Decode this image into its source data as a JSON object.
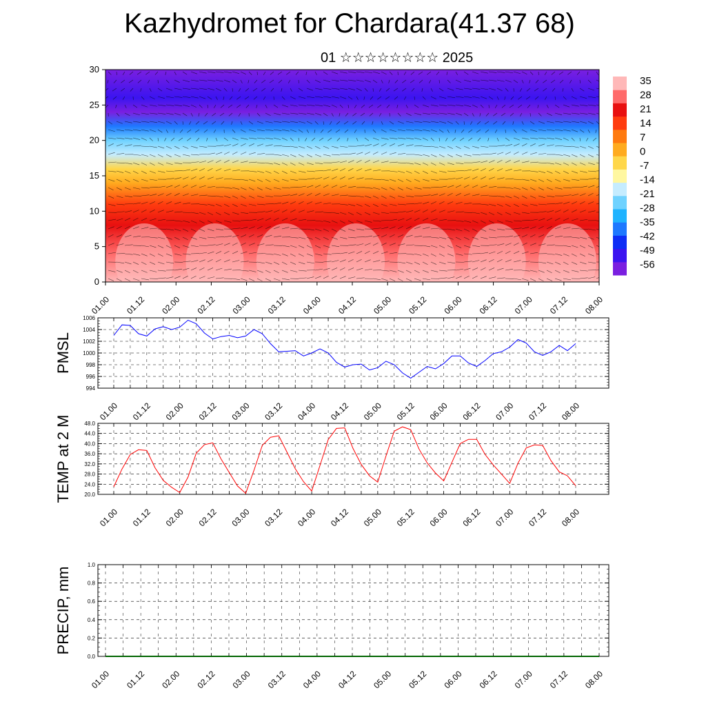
{
  "title": "Kazhydromet for Chardara(41.37 68)",
  "subtitle": "01 ☆☆☆☆☆☆☆☆ 2025",
  "time_labels": [
    "01.00",
    "01.12",
    "02.00",
    "02.12",
    "03.00",
    "03.12",
    "04.00",
    "04.12",
    "05.00",
    "05.12",
    "06.00",
    "06.12",
    "07.00",
    "07.12",
    "08.00"
  ],
  "colors": {
    "pmsl_line": "#0000ff",
    "temp_line": "#ff0000",
    "precip_line": "#006400",
    "colorbar": [
      "#7a1fe0",
      "#3b14f0",
      "#0e2df5",
      "#1e78ff",
      "#1fb3ff",
      "#6fd2ff",
      "#c5ecff",
      "#fff7a0",
      "#ffd74a",
      "#ffab1f",
      "#ff7a0f",
      "#ff3c0f",
      "#e81010",
      "#ff6a6a",
      "#ffb8b8"
    ]
  },
  "chart_data": [
    {
      "type": "heatmap",
      "name": "vertical cross-section",
      "ylim": [
        0,
        30
      ],
      "yticks": [
        "0",
        "5",
        "10",
        "15",
        "20",
        "25",
        "30"
      ],
      "xticks": [
        "01.00",
        "01.12",
        "02.00",
        "02.12",
        "03.00",
        "03.12",
        "04.00",
        "04.12",
        "05.00",
        "05.12",
        "06.00",
        "06.12",
        "07.00",
        "07.12",
        "08.00"
      ],
      "colorbar_labels": [
        "35",
        "28",
        "21",
        "14",
        "7",
        "0",
        "-7",
        "-14",
        "-21",
        "-28",
        "-35",
        "-42",
        "-49",
        "-56"
      ],
      "colorbar_range": [
        -63,
        42
      ],
      "profile": [
        {
          "y": 0,
          "v": 35
        },
        {
          "y": 4,
          "v": 28
        },
        {
          "y": 8,
          "v": 24
        },
        {
          "y": 11,
          "v": 18
        },
        {
          "y": 14,
          "v": 6
        },
        {
          "y": 16,
          "v": -6
        },
        {
          "y": 18,
          "v": -16
        },
        {
          "y": 20,
          "v": -28
        },
        {
          "y": 22,
          "v": -42
        },
        {
          "y": 24,
          "v": -58
        },
        {
          "y": 26,
          "v": -50
        },
        {
          "y": 30,
          "v": -60
        }
      ]
    },
    {
      "type": "line",
      "ylabel": "PMSL",
      "ylim": [
        994,
        1006
      ],
      "yticks": [
        "994",
        "996",
        "998",
        "1000",
        "1002",
        "1004",
        "1006"
      ],
      "xticks": [
        "01.00",
        "01.12",
        "02.00",
        "02.12",
        "03.00",
        "03.12",
        "04.00",
        "04.12",
        "05.00",
        "05.12",
        "06.00",
        "06.12",
        "07.00",
        "07.12",
        "08.00"
      ],
      "x": [
        0,
        0.125,
        0.25,
        0.375,
        0.5,
        0.625,
        0.75,
        0.875,
        1,
        1.125,
        1.25,
        1.375,
        1.5,
        1.625,
        1.75,
        1.875,
        2,
        2.125,
        2.25,
        2.375,
        2.5,
        2.625,
        2.75,
        2.875,
        3,
        3.125,
        3.25,
        3.375,
        3.5,
        3.625,
        3.75,
        3.875,
        4,
        4.125,
        4.25,
        4.375,
        4.5,
        4.625,
        4.75,
        4.875,
        5,
        5.125,
        5.25,
        5.375,
        5.5,
        5.625,
        5.75,
        5.875,
        6,
        6.125,
        6.25,
        6.375,
        6.5,
        6.625,
        6.75,
        6.875,
        7
      ],
      "series": [
        {
          "values": [
            1003.0,
            1004.8,
            1004.7,
            1003.3,
            1002.9,
            1004.1,
            1004.5,
            1004.0,
            1004.4,
            1005.6,
            1005.0,
            1003.4,
            1002.4,
            1002.8,
            1003.0,
            1002.6,
            1002.9,
            1004.0,
            1003.3,
            1001.6,
            1000.2,
            1000.3,
            1000.4,
            999.5,
            1000.0,
            1000.7,
            1000.0,
            998.4,
            997.6,
            998.0,
            998.1,
            997.1,
            997.5,
            998.6,
            998.0,
            996.6,
            995.7,
            996.7,
            997.7,
            997.3,
            998.2,
            999.5,
            999.5,
            998.3,
            997.7,
            998.7,
            999.9,
            1000.2,
            1001.0,
            1002.3,
            1001.7,
            1000.2,
            999.6,
            1000.2,
            1001.3,
            1000.4,
            1001.6
          ]
        }
      ]
    },
    {
      "type": "line",
      "ylabel": "TEMP at 2 M",
      "ylim": [
        20,
        48
      ],
      "yticks": [
        "20.0",
        "24.0",
        "28.0",
        "32.0",
        "36.0",
        "40.0",
        "44.0",
        "48.0"
      ],
      "xticks": [
        "01.00",
        "01.12",
        "02.00",
        "02.12",
        "03.00",
        "03.12",
        "04.00",
        "04.12",
        "05.00",
        "05.12",
        "06.00",
        "06.12",
        "07.00",
        "07.12",
        "08.00"
      ],
      "x": [
        0,
        0.125,
        0.25,
        0.375,
        0.5,
        0.625,
        0.75,
        0.875,
        1,
        1.125,
        1.25,
        1.375,
        1.5,
        1.625,
        1.75,
        1.875,
        2,
        2.125,
        2.25,
        2.375,
        2.5,
        2.625,
        2.75,
        2.875,
        3,
        3.125,
        3.25,
        3.375,
        3.5,
        3.625,
        3.75,
        3.875,
        4,
        4.125,
        4.25,
        4.375,
        4.5,
        4.625,
        4.75,
        4.875,
        5,
        5.125,
        5.25,
        5.375,
        5.5,
        5.625,
        5.75,
        5.875,
        6,
        6.125,
        6.25,
        6.375,
        6.5,
        6.625,
        6.75,
        6.875,
        7
      ],
      "series": [
        {
          "values": [
            23.0,
            30.0,
            35.7,
            37.6,
            37.3,
            30.5,
            25.5,
            22.8,
            20.7,
            26.8,
            36.2,
            39.6,
            40.3,
            34.0,
            28.6,
            23.3,
            20.4,
            29.5,
            39.3,
            42.5,
            43.1,
            36.6,
            30.1,
            25.0,
            21.3,
            31.4,
            41.6,
            46.0,
            46.2,
            38.1,
            31.8,
            27.3,
            24.8,
            35.1,
            44.9,
            46.6,
            45.5,
            37.9,
            32.4,
            28.4,
            25.3,
            32.6,
            40.0,
            41.7,
            41.7,
            35.8,
            31.6,
            28.0,
            24.3,
            32.3,
            38.3,
            39.5,
            39.3,
            33.3,
            28.9,
            27.3,
            23.4
          ]
        }
      ]
    },
    {
      "type": "line",
      "ylabel": "PRECIP, mm",
      "ylim": [
        0,
        1
      ],
      "yticks": [
        "0.0",
        "0.2",
        "0.4",
        "0.6",
        "0.8",
        "1.0"
      ],
      "xticks": [
        "01.00",
        "01.12",
        "02.00",
        "02.12",
        "03.00",
        "03.12",
        "04.00",
        "04.12",
        "05.00",
        "05.12",
        "06.00",
        "06.12",
        "07.00",
        "07.12",
        "08.00"
      ],
      "x": [
        0,
        7
      ],
      "series": [
        {
          "values": [
            0,
            0
          ]
        }
      ]
    }
  ]
}
